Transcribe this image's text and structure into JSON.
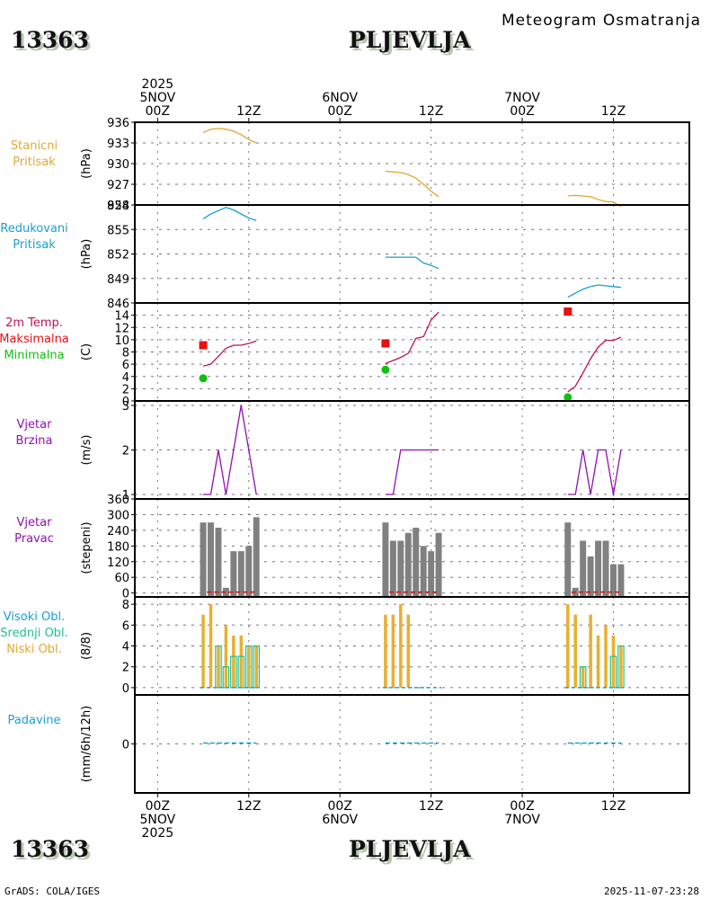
{
  "header": {
    "station_id": "13363",
    "station_name": "PLJEVLJA",
    "subtitle": "Meteogram Osmatranja"
  },
  "footer": {
    "station_id": "13363",
    "station_name": "PLJEVLJA",
    "credit": "GrADS: COLA/IGES",
    "timestamp": "2025-11-07-23:28"
  },
  "chart_data": {
    "type": "line",
    "title": "Meteogram Osmatranja - PLJEVLJA (13363)",
    "x_axis": {
      "unit": "hours since 2025-11-05 00Z",
      "range": [
        -3,
        70
      ],
      "ticks": [
        {
          "h": 0,
          "top": [
            "2025",
            "5NOV",
            "00Z"
          ],
          "bottom": [
            "00Z",
            "5NOV",
            "2025"
          ]
        },
        {
          "h": 12,
          "top": [
            "12Z"
          ],
          "bottom": [
            "12Z"
          ]
        },
        {
          "h": 24,
          "top": [
            "6NOV",
            "00Z"
          ],
          "bottom": [
            "00Z",
            "6NOV"
          ]
        },
        {
          "h": 36,
          "top": [
            "12Z"
          ],
          "bottom": [
            "12Z"
          ]
        },
        {
          "h": 48,
          "top": [
            "7NOV",
            "00Z"
          ],
          "bottom": [
            "00Z",
            "7NOV"
          ]
        },
        {
          "h": 60,
          "top": [
            "12Z"
          ],
          "bottom": [
            "12Z"
          ]
        }
      ]
    },
    "panels": [
      {
        "id": "station-pressure",
        "labels": [
          {
            "text": "Stanicni",
            "color": "#e0a830"
          },
          {
            "text": "Pritisak",
            "color": "#e0a830"
          }
        ],
        "unit": "(hPa)",
        "ylim": [
          924,
          936
        ],
        "yticks": [
          924,
          927,
          930,
          933,
          936
        ],
        "series": [
          {
            "name": "Stanicni Pritisak",
            "type": "line",
            "color": "#e0a830",
            "segments": [
              {
                "x": [
                  6,
                  7,
                  8,
                  9,
                  10,
                  11,
                  12,
                  13
                ],
                "y": [
                  934.5,
                  935.0,
                  935.1,
                  935.0,
                  934.7,
                  934.2,
                  933.5,
                  933.0
                ]
              },
              {
                "x": [
                  30,
                  31,
                  32,
                  33,
                  34,
                  35,
                  36,
                  37
                ],
                "y": [
                  928.9,
                  928.8,
                  928.7,
                  928.4,
                  927.9,
                  927.0,
                  926.0,
                  925.2
                ]
              },
              {
                "x": [
                  54,
                  55,
                  56,
                  57,
                  58,
                  59,
                  60,
                  61
                ],
                "y": [
                  925.3,
                  925.4,
                  925.3,
                  925.2,
                  924.8,
                  924.5,
                  924.4,
                  923.8
                ]
              }
            ]
          }
        ]
      },
      {
        "id": "reduced-pressure",
        "labels": [
          {
            "text": "Redukovani",
            "color": "#1a9fd0"
          },
          {
            "text": "Pritisak",
            "color": "#1a9fd0"
          }
        ],
        "unit": "(hPa)",
        "ylim": [
          846,
          858
        ],
        "yticks": [
          846,
          849,
          852,
          855,
          858
        ],
        "series": [
          {
            "name": "Redukovani Pritisak",
            "type": "line",
            "color": "#1a9fd0",
            "segments": [
              {
                "x": [
                  6,
                  7,
                  8,
                  9,
                  10,
                  11,
                  12,
                  13
                ],
                "y": [
                  856.3,
                  856.9,
                  857.3,
                  857.7,
                  857.4,
                  856.9,
                  856.4,
                  856.1
                ]
              },
              {
                "x": [
                  30,
                  31,
                  32,
                  33,
                  34,
                  35,
                  36,
                  37
                ],
                "y": [
                  851.6,
                  851.6,
                  851.6,
                  851.6,
                  851.6,
                  850.9,
                  850.6,
                  850.2
                ]
              },
              {
                "x": [
                  54,
                  55,
                  56,
                  57,
                  58,
                  59,
                  60,
                  61
                ],
                "y": [
                  846.7,
                  847.2,
                  847.7,
                  848.0,
                  848.2,
                  848.1,
                  848.0,
                  847.9
                ]
              }
            ]
          }
        ]
      },
      {
        "id": "temperature",
        "labels": [
          {
            "text": "2m Temp.",
            "color": "#c0105a"
          },
          {
            "text": "Maksimalna",
            "color": "#e81010"
          },
          {
            "text": "Minimalna",
            "color": "#10c010"
          }
        ],
        "unit": "(C)",
        "ylim": [
          0,
          16
        ],
        "yticks": [
          0,
          2,
          4,
          6,
          8,
          10,
          12,
          14
        ],
        "series": [
          {
            "name": "2m Temp.",
            "type": "line",
            "color": "#c0105a",
            "segments": [
              {
                "x": [
                  6,
                  7,
                  8,
                  9,
                  10,
                  11,
                  12,
                  13
                ],
                "y": [
                  5.7,
                  6.0,
                  7.3,
                  8.6,
                  9.1,
                  9.1,
                  9.4,
                  9.8
                ]
              },
              {
                "x": [
                  30,
                  31,
                  32,
                  33,
                  34,
                  35,
                  36,
                  37
                ],
                "y": [
                  6.1,
                  6.6,
                  7.1,
                  7.8,
                  10.2,
                  10.5,
                  13.2,
                  14.5
                ]
              },
              {
                "x": [
                  54,
                  55,
                  56,
                  57,
                  58,
                  59,
                  60,
                  61
                ],
                "y": [
                  1.5,
                  2.4,
                  4.6,
                  6.9,
                  8.8,
                  9.9,
                  9.9,
                  10.4
                ]
              }
            ]
          },
          {
            "name": "Maksimalna",
            "type": "marker",
            "shape": "square",
            "color": "#e81010",
            "points": [
              {
                "x": 6,
                "y": 9.1
              },
              {
                "x": 30,
                "y": 9.4
              },
              {
                "x": 54,
                "y": 14.6
              }
            ]
          },
          {
            "name": "Minimalna",
            "type": "marker",
            "shape": "circle",
            "color": "#10c010",
            "points": [
              {
                "x": 6,
                "y": 3.7
              },
              {
                "x": 30,
                "y": 5.1
              },
              {
                "x": 54,
                "y": 0.6
              }
            ]
          }
        ]
      },
      {
        "id": "wind-speed",
        "labels": [
          {
            "text": "Vjetar",
            "color": "#9010b0"
          },
          {
            "text": "Brzina",
            "color": "#9010b0"
          }
        ],
        "unit": "(m/s)",
        "ylim": [
          0.9,
          3.1
        ],
        "yticks": [
          1,
          2,
          3
        ],
        "series": [
          {
            "name": "Vjetar Brzina",
            "type": "line",
            "color": "#9010b0",
            "segments": [
              {
                "x": [
                  6,
                  7,
                  8,
                  9,
                  10,
                  11,
                  12,
                  13
                ],
                "y": [
                  1,
                  1,
                  2,
                  1,
                  2,
                  3,
                  2,
                  1
                ]
              },
              {
                "x": [
                  30,
                  31,
                  32,
                  33,
                  34,
                  35,
                  36,
                  37
                ],
                "y": [
                  1,
                  1,
                  2,
                  2,
                  2,
                  2,
                  2,
                  2
                ]
              },
              {
                "x": [
                  54,
                  55,
                  56,
                  57,
                  58,
                  59,
                  60,
                  61
                ],
                "y": [
                  1,
                  1,
                  2,
                  1,
                  2,
                  2,
                  1,
                  2
                ]
              }
            ]
          }
        ]
      },
      {
        "id": "wind-direction",
        "labels": [
          {
            "text": "Vjetar",
            "color": "#9010b0"
          },
          {
            "text": "Pravac",
            "color": "#9010b0"
          }
        ],
        "unit": "(stepeni)",
        "ylim": [
          -15,
          360
        ],
        "yticks": [
          0,
          60,
          120,
          180,
          240,
          300,
          360
        ],
        "series": [
          {
            "name": "Vjetar Pravac",
            "type": "bar",
            "color": "#808080",
            "x": [
              6,
              7,
              8,
              9,
              10,
              11,
              12,
              13,
              30,
              31,
              32,
              33,
              34,
              35,
              36,
              37,
              54,
              55,
              56,
              57,
              58,
              59,
              60,
              61
            ],
            "values": [
              270,
              270,
              250,
              20,
              160,
              160,
              180,
              290,
              270,
              200,
              200,
              230,
              250,
              180,
              160,
              230,
              270,
              20,
              200,
              140,
              200,
              200,
              110,
              110
            ]
          },
          {
            "name": "Baseline",
            "type": "dashed",
            "color": "#e01010",
            "segments": [
              {
                "x": [
                  6.5,
                  13
                ],
                "y": [
                  0,
                  0
                ]
              },
              {
                "x": [
                  30.5,
                  37
                ],
                "y": [
                  0,
                  0
                ]
              },
              {
                "x": [
                  54.5,
                  61
                ],
                "y": [
                  0,
                  0
                ]
              }
            ]
          }
        ]
      },
      {
        "id": "cloud-cover",
        "labels": [
          {
            "text": "Visoki Obl.",
            "color": "#1a9fd0"
          },
          {
            "text": "Srednji Obl.",
            "color": "#20c090"
          },
          {
            "text": "Niski Obl.",
            "color": "#e0a830"
          }
        ],
        "unit": "(8/8)",
        "ylim": [
          -0.7,
          8.7
        ],
        "yticks": [
          0,
          2,
          4,
          6,
          8
        ],
        "series": [
          {
            "name": "Niski Obl.",
            "type": "bar",
            "color": "#e8b030",
            "x": [
              6,
              7,
              8,
              9,
              10,
              11,
              12,
              13,
              30,
              31,
              32,
              33,
              34,
              35,
              36,
              37,
              54,
              55,
              56,
              57,
              58,
              59,
              60,
              61
            ],
            "values": [
              7,
              8,
              4,
              6,
              5,
              5,
              4,
              4,
              7,
              7,
              8,
              7,
              0,
              0,
              0,
              0,
              8,
              7,
              2,
              7,
              5,
              6,
              5,
              4
            ]
          },
          {
            "name": "Srednji Obl.",
            "type": "bar",
            "color": "#20c090",
            "x": [
              6,
              7,
              8,
              9,
              10,
              11,
              12,
              13,
              30,
              31,
              32,
              33,
              34,
              35,
              36,
              37,
              54,
              55,
              56,
              57,
              58,
              59,
              60,
              61
            ],
            "values": [
              0,
              0,
              4,
              2,
              3,
              3,
              4,
              4,
              0,
              0,
              0,
              0,
              0,
              0,
              0,
              0,
              0,
              0,
              2,
              0,
              0,
              0,
              3,
              4
            ]
          },
          {
            "name": "Visoki Obl.",
            "type": "bar",
            "color": "#1a9fd0",
            "x": [
              6,
              7,
              8,
              9,
              10,
              11,
              12,
              13,
              30,
              31,
              32,
              33,
              34,
              35,
              36,
              37,
              54,
              55,
              56,
              57,
              58,
              59,
              60,
              61
            ],
            "values": [
              0,
              0,
              0,
              0,
              0,
              0,
              0,
              0,
              0,
              0,
              0,
              0,
              0,
              0,
              0,
              0,
              0,
              0,
              0,
              0,
              0,
              0,
              0,
              0
            ]
          }
        ]
      },
      {
        "id": "precipitation",
        "labels": [
          {
            "text": "Padavine",
            "color": "#1a9fd0"
          }
        ],
        "unit": "(mm/6h/12h)",
        "ylim": [
          -1,
          1
        ],
        "yticks": [
          0
        ],
        "series": [
          {
            "name": "Padavine",
            "type": "dashed",
            "color": "#1a9fd0",
            "segments": [
              {
                "x": [
                  6,
                  13
                ],
                "y": [
                  0,
                  0
                ]
              },
              {
                "x": [
                  30,
                  37
                ],
                "y": [
                  0,
                  0
                ]
              },
              {
                "x": [
                  54,
                  61
                ],
                "y": [
                  0,
                  0
                ]
              }
            ]
          }
        ]
      }
    ]
  }
}
